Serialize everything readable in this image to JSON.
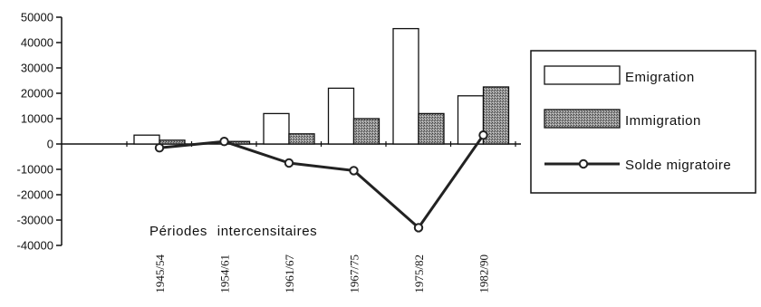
{
  "chart_data": {
    "type": "bar",
    "title": "",
    "xlabel": "Périodes  intercensitaires",
    "ylabel": "",
    "ylim": [
      -40000,
      50000
    ],
    "yticks": [
      50000,
      40000,
      30000,
      20000,
      10000,
      0,
      -10000,
      -20000,
      -30000,
      -40000
    ],
    "ytick_labels": [
      "50000",
      "40000",
      "30000",
      "20000",
      "10000",
      "0",
      "-10000",
      "-20000",
      "-30000",
      "-40000"
    ],
    "categories": [
      "1945/54",
      "1954/61",
      "1961/67",
      "1967/75",
      "1975/82",
      "1982/90"
    ],
    "series": [
      {
        "name": "Emigration",
        "kind": "bar",
        "values": [
          3500,
          0,
          12000,
          22000,
          45500,
          19000
        ]
      },
      {
        "name": "Immigration",
        "kind": "bar",
        "values": [
          1500,
          1000,
          4000,
          10000,
          12000,
          22500
        ]
      },
      {
        "name": "Solde migratoire",
        "kind": "line",
        "values": [
          -1500,
          1000,
          -7500,
          -10500,
          -33000,
          3500
        ]
      }
    ],
    "legend": "right",
    "grid": false,
    "colors": {
      "emigration_fill": "#ffffff",
      "immigration_fill": "#8c8c8c",
      "line": "#222222",
      "axis": "#111111"
    }
  }
}
